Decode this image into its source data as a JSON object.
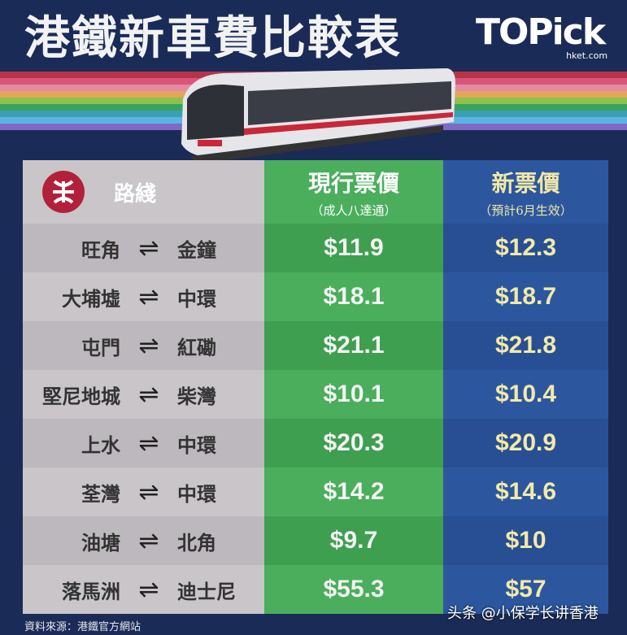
{
  "title": "港鐵新車費比較表",
  "logo": {
    "text": "TOPick",
    "sub": "hket.com"
  },
  "stripe_colors": [
    "#b5344a",
    "#d9567a",
    "#e58aa3",
    "#e3a55a",
    "#8fbf4e",
    "#3aa35e",
    "#3b9fb4",
    "#5bb4e4",
    "#7f6bc4"
  ],
  "header": {
    "route_label": "路綫",
    "current_title": "現行票價",
    "current_sub": "（成人八達通）",
    "new_title": "新票價",
    "new_sub": "（預計6月生效）"
  },
  "arrow_icon": "⇌",
  "rows": [
    {
      "from": "旺角",
      "to": "金鐘",
      "current": "$11.9",
      "new": "$12.3"
    },
    {
      "from": "大埔墟",
      "to": "中環",
      "current": "$18.1",
      "new": "$18.7"
    },
    {
      "from": "屯門",
      "to": "紅磡",
      "current": "$21.1",
      "new": "$21.8"
    },
    {
      "from": "堅尼地城",
      "to": "柴灣",
      "current": "$10.1",
      "new": "$10.4"
    },
    {
      "from": "上水",
      "to": "中環",
      "current": "$20.3",
      "new": "$20.9"
    },
    {
      "from": "荃灣",
      "to": "中環",
      "current": "$14.2",
      "new": "$14.6"
    },
    {
      "from": "油塘",
      "to": "北角",
      "current": "$9.7",
      "new": "$10"
    },
    {
      "from": "落馬洲",
      "to": "迪士尼",
      "current": "$55.3",
      "new": "$57"
    }
  ],
  "source": "資料來源：港鐵官方網站",
  "watermark": "头条 @小保学长讲香港"
}
